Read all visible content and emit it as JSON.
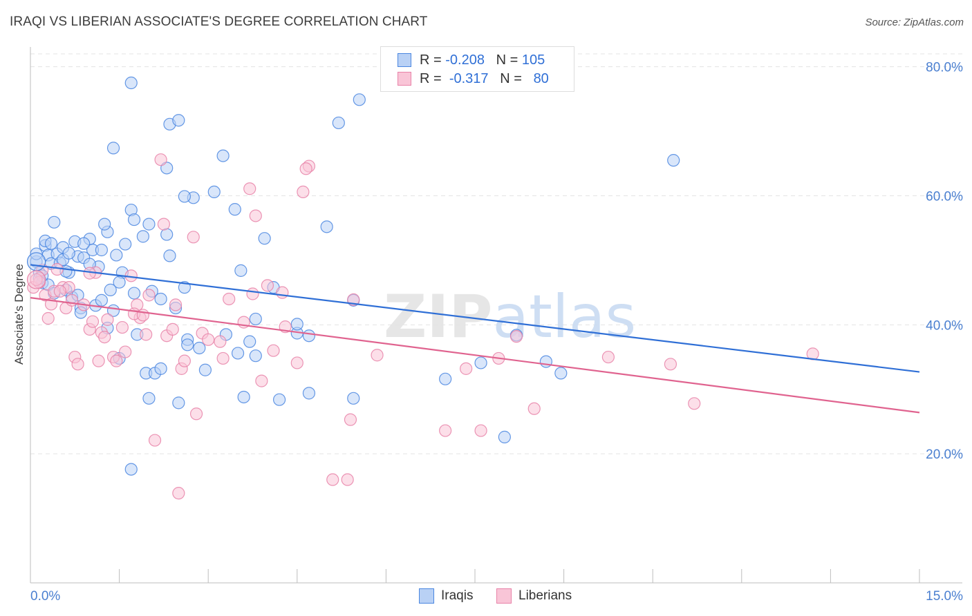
{
  "title": "IRAQI VS LIBERIAN ASSOCIATE'S DEGREE CORRELATION CHART",
  "source": "Source: ZipAtlas.com",
  "legend_top": {
    "rows": [
      {
        "r_label": "R =",
        "r_value": "-0.208",
        "n_label": "N =",
        "n_value": "105",
        "color": "#4a86e0",
        "fill": "#b9d1f5"
      },
      {
        "r_label": "R =",
        "r_value": "-0.317",
        "n_label": "N =",
        "n_value": "80",
        "color": "#e882a8",
        "fill": "#f9c5d7"
      }
    ]
  },
  "chart_data": {
    "type": "scatter",
    "title": "IRAQI VS LIBERIAN ASSOCIATE'S DEGREE CORRELATION CHART",
    "xlabel": "",
    "ylabel": "Associate's Degree",
    "xlim": [
      0,
      15
    ],
    "ylim": [
      0,
      82
    ],
    "x_tick_labels": [
      "0.0%",
      "15.0%"
    ],
    "y_ticks": [
      20,
      40,
      60,
      80
    ],
    "y_tick_labels": [
      "20.0%",
      "40.0%",
      "60.0%",
      "80.0%"
    ],
    "grid": true,
    "legend_position": "top-center",
    "watermark": "ZIPatlas",
    "series": [
      {
        "name": "Iraqis",
        "color": "#4a86e0",
        "fill": "#b9d1f5",
        "trend": {
          "x": [
            0,
            15
          ],
          "y": [
            49.3,
            32.7
          ]
        },
        "points": [
          [
            0.1,
            49.8
          ],
          [
            0.15,
            48.1
          ],
          [
            0.2,
            46.5
          ],
          [
            0.25,
            52.3
          ],
          [
            0.3,
            50.8
          ],
          [
            0.35,
            49.5
          ],
          [
            0.4,
            55.9
          ],
          [
            0.45,
            51.0
          ],
          [
            0.5,
            49.6
          ],
          [
            0.55,
            52.0
          ],
          [
            0.6,
            45.4
          ],
          [
            0.65,
            48.1
          ],
          [
            0.7,
            44.3
          ],
          [
            0.75,
            52.9
          ],
          [
            0.8,
            50.6
          ],
          [
            0.85,
            42.6
          ],
          [
            0.9,
            50.4
          ],
          [
            1.0,
            53.3
          ],
          [
            1.05,
            51.6
          ],
          [
            1.1,
            43.0
          ],
          [
            1.15,
            49.0
          ],
          [
            1.2,
            51.6
          ],
          [
            1.3,
            54.4
          ],
          [
            1.35,
            45.4
          ],
          [
            1.4,
            42.2
          ],
          [
            1.45,
            50.8
          ],
          [
            1.5,
            34.8
          ],
          [
            1.55,
            48.1
          ],
          [
            1.6,
            52.5
          ],
          [
            1.7,
            57.8
          ],
          [
            1.75,
            44.9
          ],
          [
            1.8,
            38.5
          ],
          [
            1.9,
            53.7
          ],
          [
            1.95,
            32.5
          ],
          [
            2.0,
            28.6
          ],
          [
            2.05,
            45.2
          ],
          [
            2.1,
            32.5
          ],
          [
            2.2,
            33.2
          ],
          [
            2.35,
            50.7
          ],
          [
            2.45,
            42.6
          ],
          [
            2.5,
            27.9
          ],
          [
            2.6,
            45.8
          ],
          [
            2.65,
            37.7
          ],
          [
            2.75,
            59.7
          ],
          [
            2.85,
            36.4
          ],
          [
            2.95,
            33.0
          ],
          [
            3.1,
            60.6
          ],
          [
            3.3,
            38.5
          ],
          [
            3.45,
            57.9
          ],
          [
            3.55,
            48.4
          ],
          [
            3.6,
            28.8
          ],
          [
            3.7,
            37.4
          ],
          [
            3.8,
            35.2
          ],
          [
            3.95,
            53.4
          ],
          [
            4.1,
            45.8
          ],
          [
            4.2,
            28.4
          ],
          [
            4.5,
            38.7
          ],
          [
            4.7,
            29.4
          ],
          [
            5.0,
            55.2
          ],
          [
            5.2,
            71.3
          ],
          [
            5.45,
            28.6
          ],
          [
            5.55,
            74.9
          ],
          [
            1.7,
            77.5
          ],
          [
            2.35,
            71.1
          ],
          [
            2.5,
            71.7
          ],
          [
            1.4,
            67.4
          ],
          [
            3.25,
            66.2
          ],
          [
            2.3,
            64.3
          ],
          [
            2.6,
            59.9
          ],
          [
            1.75,
            56.3
          ],
          [
            2.0,
            55.6
          ],
          [
            0.8,
            44.6
          ],
          [
            1.2,
            43.8
          ],
          [
            0.3,
            46.2
          ],
          [
            0.4,
            44.9
          ],
          [
            0.2,
            47.6
          ],
          [
            0.1,
            51.0
          ],
          [
            0.25,
            53.0
          ],
          [
            0.6,
            48.3
          ],
          [
            0.9,
            52.6
          ],
          [
            1.0,
            49.4
          ],
          [
            1.5,
            46.6
          ],
          [
            2.2,
            44.0
          ],
          [
            3.8,
            40.9
          ],
          [
            4.5,
            40.1
          ],
          [
            4.7,
            38.3
          ],
          [
            5.45,
            43.8
          ],
          [
            7.0,
            31.6
          ],
          [
            7.6,
            34.1
          ],
          [
            8.0,
            22.6
          ],
          [
            8.2,
            38.4
          ],
          [
            8.7,
            34.3
          ],
          [
            8.95,
            32.5
          ],
          [
            10.85,
            65.5
          ],
          [
            1.3,
            39.5
          ],
          [
            1.7,
            17.6
          ],
          [
            0.55,
            50.1
          ],
          [
            0.85,
            41.9
          ],
          [
            2.65,
            36.9
          ],
          [
            3.5,
            35.6
          ],
          [
            0.35,
            52.6
          ],
          [
            0.65,
            51.1
          ],
          [
            1.25,
            55.6
          ],
          [
            2.3,
            54.0
          ],
          [
            0.15,
            47.2
          ]
        ]
      },
      {
        "name": "Liberians",
        "color": "#e882a8",
        "fill": "#f9c5d7",
        "trend": {
          "x": [
            0,
            15
          ],
          "y": [
            44.2,
            26.4
          ]
        },
        "points": [
          [
            0.05,
            45.8
          ],
          [
            0.15,
            46.6
          ],
          [
            0.2,
            48.5
          ],
          [
            0.25,
            44.6
          ],
          [
            0.3,
            41.0
          ],
          [
            0.35,
            43.2
          ],
          [
            0.45,
            48.6
          ],
          [
            0.55,
            45.8
          ],
          [
            0.6,
            42.6
          ],
          [
            0.7,
            43.8
          ],
          [
            0.75,
            35.0
          ],
          [
            0.8,
            33.9
          ],
          [
            0.9,
            43.1
          ],
          [
            1.0,
            39.3
          ],
          [
            1.05,
            40.5
          ],
          [
            1.1,
            48.1
          ],
          [
            1.2,
            38.8
          ],
          [
            1.25,
            38.1
          ],
          [
            1.3,
            40.8
          ],
          [
            1.4,
            35.0
          ],
          [
            1.45,
            34.4
          ],
          [
            1.55,
            39.6
          ],
          [
            1.6,
            35.8
          ],
          [
            1.7,
            47.6
          ],
          [
            1.8,
            43.1
          ],
          [
            1.85,
            41.1
          ],
          [
            1.95,
            38.5
          ],
          [
            2.0,
            44.6
          ],
          [
            2.1,
            22.1
          ],
          [
            2.2,
            65.6
          ],
          [
            2.3,
            38.3
          ],
          [
            2.4,
            39.3
          ],
          [
            2.45,
            43.1
          ],
          [
            2.5,
            13.9
          ],
          [
            2.55,
            33.2
          ],
          [
            2.75,
            53.6
          ],
          [
            2.8,
            26.2
          ],
          [
            2.9,
            38.7
          ],
          [
            3.0,
            37.7
          ],
          [
            3.2,
            37.4
          ],
          [
            3.35,
            44.0
          ],
          [
            3.6,
            40.4
          ],
          [
            3.7,
            61.1
          ],
          [
            3.8,
            56.9
          ],
          [
            3.9,
            31.3
          ],
          [
            4.0,
            46.1
          ],
          [
            4.1,
            36.0
          ],
          [
            4.3,
            39.7
          ],
          [
            4.5,
            34.1
          ],
          [
            4.6,
            60.6
          ],
          [
            4.7,
            64.6
          ],
          [
            5.1,
            16.0
          ],
          [
            5.35,
            16.0
          ],
          [
            5.4,
            25.3
          ],
          [
            5.45,
            43.9
          ],
          [
            5.85,
            35.3
          ],
          [
            7.0,
            23.6
          ],
          [
            7.35,
            33.2
          ],
          [
            7.6,
            23.6
          ],
          [
            7.9,
            34.8
          ],
          [
            8.2,
            38.2
          ],
          [
            8.5,
            27.0
          ],
          [
            9.75,
            35.0
          ],
          [
            10.8,
            33.9
          ],
          [
            11.2,
            27.8
          ],
          [
            13.2,
            35.5
          ],
          [
            0.1,
            47.0
          ],
          [
            0.4,
            45.2
          ],
          [
            0.65,
            45.8
          ],
          [
            1.15,
            34.4
          ],
          [
            1.75,
            41.7
          ],
          [
            2.25,
            55.6
          ],
          [
            2.6,
            34.4
          ],
          [
            3.25,
            34.8
          ],
          [
            3.75,
            44.8
          ],
          [
            4.25,
            45.0
          ],
          [
            4.65,
            64.2
          ],
          [
            1.0,
            48.0
          ],
          [
            0.5,
            45.2
          ],
          [
            1.9,
            41.5
          ]
        ]
      }
    ]
  }
}
